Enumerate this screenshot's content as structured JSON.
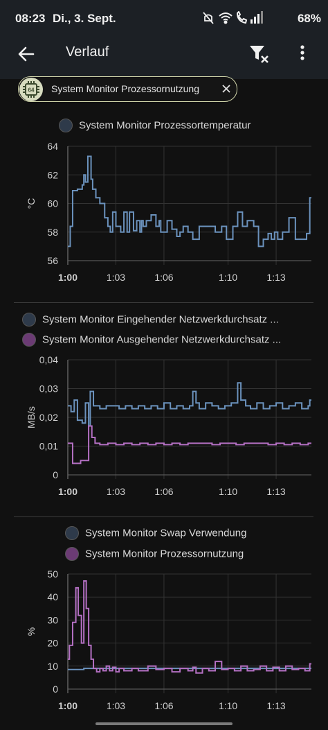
{
  "status_bar": {
    "time": "08:23",
    "date": "Di., 3. Sept.",
    "battery": "68%"
  },
  "app_bar": {
    "title": "Verlauf",
    "icons": [
      "arrow-left-icon",
      "filter-remove-icon",
      "more-vert-icon"
    ]
  },
  "filter_chip": {
    "label": "System Monitor Prozessornutzung",
    "icon": "cpu-64-icon"
  },
  "charts": [
    {
      "legend": [
        {
          "label": "System Monitor Prozessortemperatur",
          "color": "#2e3a4a"
        }
      ]
    },
    {
      "legend": [
        {
          "label": "System Monitor Eingehender Netzwerkdurchsatz ...",
          "color": "#2e3a4a"
        },
        {
          "label": "System Monitor Ausgehender Netzwerkdurchsatz ...",
          "color": "#6b3b74"
        }
      ]
    },
    {
      "legend": [
        {
          "label": "System Monitor Swap Verwendung",
          "color": "#2e3a4a"
        },
        {
          "label": "System Monitor Prozessornutzung",
          "color": "#6b3b74"
        }
      ]
    }
  ],
  "chart_data": [
    {
      "type": "line",
      "ylabel": "°C",
      "ylim": [
        56,
        64
      ],
      "yticks": [
        "56",
        "58",
        "60",
        "62",
        "64"
      ],
      "xticks": [
        "1:00",
        "1:03",
        "1:06",
        "1:10",
        "1:13"
      ],
      "xlim": [
        0,
        15.2
      ],
      "xtick_values": [
        0,
        3,
        6,
        10,
        13
      ],
      "series": [
        {
          "name": "System Monitor Prozessortemperatur",
          "color": "#6b92bd",
          "x": [
            0,
            0.15,
            0.3,
            0.6,
            0.9,
            1.0,
            1.1,
            1.25,
            1.45,
            1.55,
            1.75,
            2.0,
            2.3,
            2.5,
            2.65,
            2.8,
            3.0,
            3.3,
            3.5,
            3.7,
            3.85,
            4.1,
            4.3,
            4.5,
            4.6,
            4.7,
            4.9,
            5.2,
            5.5,
            5.7,
            5.8,
            6.0,
            6.2,
            6.5,
            6.8,
            7.0,
            7.2,
            7.5,
            7.8,
            8.2,
            8.6,
            8.9,
            9.2,
            9.6,
            9.9,
            10.3,
            10.6,
            10.9,
            11.2,
            11.6,
            11.9,
            12.2,
            12.5,
            12.7,
            12.9,
            13.1,
            13.4,
            13.8,
            14.2,
            14.6,
            14.9,
            15.1
          ],
          "y": [
            57,
            58.4,
            60.9,
            61,
            61.3,
            62,
            61.5,
            63.3,
            61.7,
            61,
            60.4,
            60,
            59,
            58.4,
            58,
            59.4,
            58.4,
            58,
            59.4,
            58,
            59.4,
            58.1,
            58.8,
            58,
            58.8,
            58.4,
            58.8,
            59.2,
            58.4,
            58.8,
            58,
            58,
            58.8,
            58.2,
            57.7,
            58,
            58.4,
            58,
            57.5,
            58.4,
            58.4,
            58.4,
            58,
            58.4,
            57.5,
            58.4,
            59.4,
            58.4,
            58.8,
            58.4,
            57,
            57.5,
            57.9,
            57.5,
            58.0,
            57.5,
            58.0,
            59.0,
            57.5,
            57.5,
            57.9,
            60.4
          ]
        }
      ]
    },
    {
      "type": "line",
      "ylabel": "MB/s",
      "ylim": [
        0,
        0.04
      ],
      "yticks": [
        "0",
        "0,01",
        "0,02",
        "0,03",
        "0,04"
      ],
      "xticks": [
        "1:00",
        "1:03",
        "1:06",
        "1:10",
        "1:13"
      ],
      "xlim": [
        0,
        15.2
      ],
      "xtick_values": [
        0,
        3,
        6,
        10,
        13
      ],
      "series": [
        {
          "name": "System Monitor Eingehender Netzwerkdurchsatz ...",
          "color": "#6b92bd",
          "x": [
            0,
            0.2,
            0.4,
            0.6,
            0.9,
            1.1,
            1.3,
            1.4,
            1.6,
            2.0,
            2.4,
            2.8,
            3.2,
            3.6,
            4.0,
            4.4,
            4.8,
            5.2,
            5.6,
            6.0,
            6.4,
            6.8,
            7.2,
            7.6,
            7.8,
            8.0,
            8.2,
            8.6,
            9.0,
            9.4,
            9.8,
            10.2,
            10.6,
            10.8,
            11.1,
            11.4,
            11.8,
            12.2,
            12.6,
            13.0,
            13.4,
            13.8,
            14.2,
            14.6,
            15.0,
            15.1
          ],
          "y": [
            0.024,
            0.022,
            0.026,
            0.019,
            0.018,
            0.025,
            0.017,
            0.029,
            0.024,
            0.023,
            0.024,
            0.024,
            0.023,
            0.024,
            0.023,
            0.024,
            0.023,
            0.024,
            0.023,
            0.025,
            0.023,
            0.024,
            0.023,
            0.024,
            0.029,
            0.025,
            0.023,
            0.025,
            0.024,
            0.023,
            0.024,
            0.025,
            0.032,
            0.026,
            0.024,
            0.023,
            0.025,
            0.023,
            0.024,
            0.025,
            0.023,
            0.024,
            0.025,
            0.023,
            0.024,
            0.026
          ]
        },
        {
          "name": "System Monitor Ausgehender Netzwerkdurchsatz ...",
          "color": "#b470c3",
          "x": [
            0,
            0.3,
            0.8,
            1.3,
            1.5,
            1.7,
            2.0,
            2.5,
            3.0,
            3.5,
            4.0,
            4.5,
            5.0,
            5.5,
            6.0,
            6.5,
            7.0,
            7.5,
            8.0,
            8.5,
            9.0,
            9.5,
            10.0,
            10.5,
            11.0,
            11.5,
            12.0,
            12.5,
            13.0,
            13.5,
            14.0,
            14.5,
            15.0
          ],
          "y": [
            0.011,
            0.004,
            0.005,
            0.017,
            0.013,
            0.011,
            0.0105,
            0.011,
            0.0105,
            0.011,
            0.0105,
            0.011,
            0.0105,
            0.011,
            0.0105,
            0.011,
            0.0105,
            0.011,
            0.011,
            0.011,
            0.0105,
            0.011,
            0.011,
            0.0105,
            0.011,
            0.011,
            0.011,
            0.0105,
            0.011,
            0.0105,
            0.011,
            0.0105,
            0.011
          ]
        }
      ]
    },
    {
      "type": "line",
      "ylabel": "%",
      "ylim": [
        0,
        50
      ],
      "yticks": [
        "0",
        "10",
        "20",
        "30",
        "40",
        "50"
      ],
      "xticks": [
        "1:00",
        "1:03",
        "1:06",
        "1:10",
        "1:13"
      ],
      "xlim": [
        0,
        15.2
      ],
      "xtick_values": [
        0,
        3,
        6,
        10,
        13
      ],
      "series": [
        {
          "name": "System Monitor Swap Verwendung",
          "color": "#6b92bd",
          "x": [
            0,
            0.6,
            1.0,
            1.6,
            15.1
          ],
          "y": [
            8.5,
            8.5,
            9,
            9,
            9
          ]
        },
        {
          "name": "System Monitor Prozessornutzung",
          "color": "#b470c3",
          "x": [
            0,
            0.1,
            0.3,
            0.5,
            0.65,
            0.85,
            1.0,
            1.15,
            1.3,
            1.45,
            1.6,
            1.8,
            2.0,
            2.2,
            2.4,
            2.6,
            2.8,
            3.0,
            3.2,
            3.5,
            4.0,
            4.4,
            5.0,
            5.5,
            6.0,
            6.5,
            7.0,
            7.5,
            7.8,
            8.0,
            8.4,
            8.8,
            9.2,
            9.6,
            10.0,
            10.4,
            10.8,
            11.2,
            11.6,
            12.0,
            12.4,
            12.8,
            13.2,
            13.6,
            14.0,
            14.4,
            14.8,
            15.1
          ],
          "y": [
            13,
            19,
            29,
            44,
            32,
            20,
            47,
            35,
            19,
            13,
            9,
            7.5,
            9,
            8,
            10,
            8,
            9.5,
            7.5,
            9,
            8,
            9,
            8,
            10,
            8.5,
            9,
            7.5,
            9,
            8,
            9.5,
            7,
            9,
            8,
            12,
            8.5,
            9,
            8,
            10,
            8,
            8.5,
            10,
            8,
            9.5,
            8,
            10,
            8.5,
            9,
            8,
            11
          ]
        }
      ]
    }
  ]
}
